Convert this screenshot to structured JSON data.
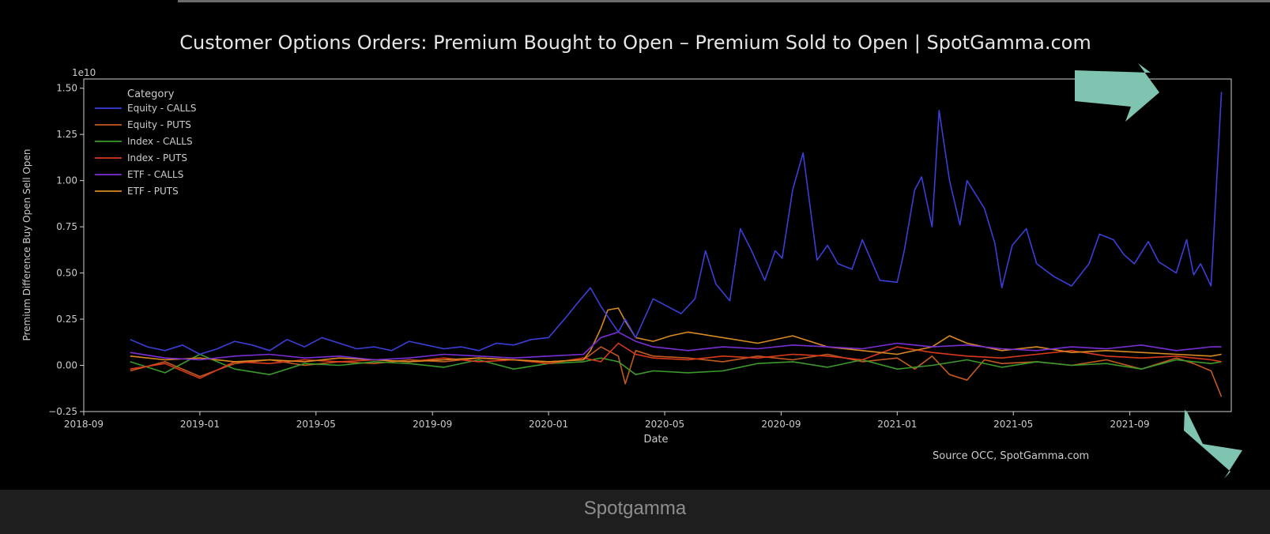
{
  "chart_data": {
    "type": "line",
    "title": "Customer Options Orders: Premium Bought to Open – Premium Sold to Open | SpotGamma.com",
    "xlabel": "Date",
    "ylabel": "Premium Difference Buy Open Sell Open",
    "y_multiplier": "1e10",
    "ylim": [
      -0.25,
      1.55
    ],
    "xlim": [
      2018.667,
      2021.958
    ],
    "x_ticks": [
      {
        "x": 2018.667,
        "label": "2018-09"
      },
      {
        "x": 2019.0,
        "label": "2019-01"
      },
      {
        "x": 2019.333,
        "label": "2019-05"
      },
      {
        "x": 2019.667,
        "label": "2019-09"
      },
      {
        "x": 2020.0,
        "label": "2020-01"
      },
      {
        "x": 2020.333,
        "label": "2020-05"
      },
      {
        "x": 2020.667,
        "label": "2020-09"
      },
      {
        "x": 2021.0,
        "label": "2021-01"
      },
      {
        "x": 2021.333,
        "label": "2021-05"
      },
      {
        "x": 2021.667,
        "label": "2021-09"
      }
    ],
    "y_ticks": [
      {
        "y": -0.25,
        "label": "−0.25"
      },
      {
        "y": 0.0,
        "label": "0.00"
      },
      {
        "y": 0.25,
        "label": "0.25"
      },
      {
        "y": 0.5,
        "label": "0.50"
      },
      {
        "y": 0.75,
        "label": "0.75"
      },
      {
        "y": 1.0,
        "label": "1.00"
      },
      {
        "y": 1.25,
        "label": "1.25"
      },
      {
        "y": 1.5,
        "label": "1.50"
      }
    ],
    "legend_title": "Category",
    "legend_position": "top-left",
    "source": "Source  OCC, SpotGamma.com",
    "series": [
      {
        "name": "Equity - CALLS",
        "color": "#3b3fd8",
        "x": [
          2018.8,
          2018.85,
          2018.9,
          2018.95,
          2019.0,
          2019.05,
          2019.1,
          2019.15,
          2019.2,
          2019.25,
          2019.3,
          2019.35,
          2019.4,
          2019.45,
          2019.5,
          2019.55,
          2019.6,
          2019.65,
          2019.7,
          2019.75,
          2019.8,
          2019.85,
          2019.9,
          2019.95,
          2020.0,
          2020.05,
          2020.08,
          2020.12,
          2020.15,
          2020.2,
          2020.22,
          2020.25,
          2020.3,
          2020.33,
          2020.38,
          2020.42,
          2020.45,
          2020.48,
          2020.52,
          2020.55,
          2020.58,
          2020.62,
          2020.65,
          2020.67,
          2020.7,
          2020.73,
          2020.77,
          2020.8,
          2020.83,
          2020.87,
          2020.9,
          2020.95,
          2021.0,
          2021.02,
          2021.05,
          2021.07,
          2021.1,
          2021.12,
          2021.15,
          2021.18,
          2021.2,
          2021.25,
          2021.28,
          2021.3,
          2021.33,
          2021.37,
          2021.4,
          2021.45,
          2021.5,
          2021.55,
          2021.58,
          2021.62,
          2021.65,
          2021.68,
          2021.72,
          2021.75,
          2021.8,
          2021.83,
          2021.85,
          2021.87,
          2021.9,
          2021.93
        ],
        "y": [
          0.14,
          0.1,
          0.08,
          0.11,
          0.06,
          0.09,
          0.13,
          0.11,
          0.08,
          0.14,
          0.1,
          0.15,
          0.12,
          0.09,
          0.1,
          0.08,
          0.13,
          0.11,
          0.09,
          0.1,
          0.08,
          0.12,
          0.11,
          0.14,
          0.15,
          0.26,
          0.33,
          0.42,
          0.32,
          0.18,
          0.25,
          0.15,
          0.36,
          0.33,
          0.28,
          0.36,
          0.62,
          0.44,
          0.35,
          0.74,
          0.63,
          0.46,
          0.62,
          0.58,
          0.95,
          1.15,
          0.57,
          0.65,
          0.55,
          0.52,
          0.68,
          0.46,
          0.45,
          0.62,
          0.95,
          1.02,
          0.75,
          1.38,
          1.0,
          0.76,
          1.0,
          0.85,
          0.66,
          0.42,
          0.65,
          0.74,
          0.55,
          0.48,
          0.43,
          0.55,
          0.71,
          0.68,
          0.6,
          0.55,
          0.67,
          0.56,
          0.5,
          0.68,
          0.49,
          0.55,
          0.43,
          1.48
        ]
      },
      {
        "name": "Equity - PUTS",
        "color": "#c25a20",
        "x": [
          2018.8,
          2018.9,
          2019.0,
          2019.1,
          2019.2,
          2019.3,
          2019.4,
          2019.5,
          2019.6,
          2019.7,
          2019.8,
          2019.9,
          2020.0,
          2020.1,
          2020.15,
          2020.2,
          2020.22,
          2020.25,
          2020.3,
          2020.4,
          2020.5,
          2020.6,
          2020.7,
          2020.8,
          2020.9,
          2021.0,
          2021.05,
          2021.1,
          2021.15,
          2021.2,
          2021.25,
          2021.3,
          2021.4,
          2021.5,
          2021.6,
          2021.7,
          2021.8,
          2021.85,
          2021.9,
          2021.93
        ],
        "y": [
          -0.03,
          0.02,
          -0.06,
          0.01,
          0.03,
          0.0,
          0.02,
          0.01,
          0.03,
          0.02,
          0.04,
          0.03,
          0.02,
          0.03,
          0.1,
          0.05,
          -0.1,
          0.08,
          0.05,
          0.04,
          0.02,
          0.05,
          0.03,
          0.06,
          0.02,
          0.04,
          -0.02,
          0.05,
          -0.05,
          -0.08,
          0.03,
          0.01,
          0.02,
          0.0,
          0.03,
          -0.02,
          0.04,
          0.01,
          -0.03,
          -0.17
        ]
      },
      {
        "name": "Index - CALLS",
        "color": "#3a9a2a",
        "x": [
          2018.8,
          2018.9,
          2019.0,
          2019.1,
          2019.2,
          2019.3,
          2019.4,
          2019.5,
          2019.6,
          2019.7,
          2019.8,
          2019.9,
          2020.0,
          2020.1,
          2020.15,
          2020.2,
          2020.25,
          2020.3,
          2020.4,
          2020.5,
          2020.6,
          2020.7,
          2020.8,
          2020.9,
          2021.0,
          2021.1,
          2021.2,
          2021.3,
          2021.4,
          2021.5,
          2021.6,
          2021.7,
          2021.8,
          2021.9,
          2021.93
        ],
        "y": [
          0.02,
          -0.04,
          0.06,
          -0.02,
          -0.05,
          0.01,
          0.0,
          0.02,
          0.01,
          -0.01,
          0.03,
          -0.02,
          0.01,
          0.02,
          0.04,
          0.02,
          -0.05,
          -0.03,
          -0.04,
          -0.03,
          0.01,
          0.02,
          -0.01,
          0.03,
          -0.02,
          0.0,
          0.03,
          -0.01,
          0.02,
          0.0,
          0.01,
          -0.02,
          0.03,
          0.01,
          0.02
        ]
      },
      {
        "name": "Index - PUTS",
        "color": "#d83a1a",
        "x": [
          2018.8,
          2018.9,
          2019.0,
          2019.1,
          2019.2,
          2019.3,
          2019.4,
          2019.5,
          2019.6,
          2019.7,
          2019.8,
          2019.9,
          2020.0,
          2020.1,
          2020.15,
          2020.2,
          2020.25,
          2020.3,
          2020.4,
          2020.5,
          2020.6,
          2020.7,
          2020.8,
          2020.9,
          2021.0,
          2021.1,
          2021.2,
          2021.3,
          2021.4,
          2021.5,
          2021.6,
          2021.7,
          2021.8,
          2021.9,
          2021.93
        ],
        "y": [
          -0.02,
          0.01,
          -0.07,
          0.02,
          0.01,
          0.03,
          0.02,
          0.03,
          0.02,
          0.04,
          0.02,
          0.03,
          0.01,
          0.04,
          0.02,
          0.12,
          0.06,
          0.04,
          0.03,
          0.05,
          0.04,
          0.06,
          0.05,
          0.03,
          0.1,
          0.07,
          0.05,
          0.04,
          0.06,
          0.08,
          0.05,
          0.04,
          0.05,
          0.03,
          0.02
        ]
      },
      {
        "name": "ETF - CALLS",
        "color": "#7a2fd6",
        "x": [
          2018.8,
          2018.9,
          2019.0,
          2019.1,
          2019.2,
          2019.3,
          2019.4,
          2019.5,
          2019.6,
          2019.7,
          2019.8,
          2019.9,
          2020.0,
          2020.1,
          2020.15,
          2020.2,
          2020.25,
          2020.3,
          2020.4,
          2020.5,
          2020.6,
          2020.7,
          2020.8,
          2020.9,
          2021.0,
          2021.1,
          2021.2,
          2021.3,
          2021.4,
          2021.5,
          2021.6,
          2021.7,
          2021.8,
          2021.9,
          2021.93
        ],
        "y": [
          0.07,
          0.04,
          0.03,
          0.05,
          0.06,
          0.04,
          0.05,
          0.03,
          0.04,
          0.06,
          0.05,
          0.04,
          0.05,
          0.06,
          0.15,
          0.18,
          0.13,
          0.1,
          0.08,
          0.1,
          0.09,
          0.11,
          0.1,
          0.09,
          0.12,
          0.1,
          0.11,
          0.09,
          0.08,
          0.1,
          0.09,
          0.11,
          0.08,
          0.1,
          0.1
        ]
      },
      {
        "name": "ETF - PUTS",
        "color": "#d98a22",
        "x": [
          2018.8,
          2018.9,
          2019.0,
          2019.1,
          2019.2,
          2019.3,
          2019.4,
          2019.5,
          2019.6,
          2019.7,
          2019.8,
          2019.9,
          2020.0,
          2020.1,
          2020.12,
          2020.15,
          2020.17,
          2020.2,
          2020.22,
          2020.25,
          2020.3,
          2020.35,
          2020.4,
          2020.5,
          2020.6,
          2020.7,
          2020.8,
          2020.9,
          2021.0,
          2021.1,
          2021.15,
          2021.2,
          2021.3,
          2021.4,
          2021.5,
          2021.6,
          2021.7,
          2021.8,
          2021.9,
          2021.93
        ],
        "y": [
          0.05,
          0.03,
          0.04,
          0.02,
          0.03,
          0.02,
          0.04,
          0.03,
          0.02,
          0.03,
          0.04,
          0.03,
          0.02,
          0.03,
          0.08,
          0.2,
          0.3,
          0.31,
          0.24,
          0.15,
          0.13,
          0.16,
          0.18,
          0.15,
          0.12,
          0.16,
          0.1,
          0.08,
          0.06,
          0.1,
          0.16,
          0.12,
          0.08,
          0.1,
          0.07,
          0.08,
          0.07,
          0.06,
          0.05,
          0.06
        ]
      }
    ]
  },
  "footer": {
    "label": "Spotgamma"
  },
  "colors": {
    "background": "#000000",
    "axis": "#cccccc",
    "arrow": "#7fc4b0",
    "footer_bg": "#1e1e1e"
  }
}
